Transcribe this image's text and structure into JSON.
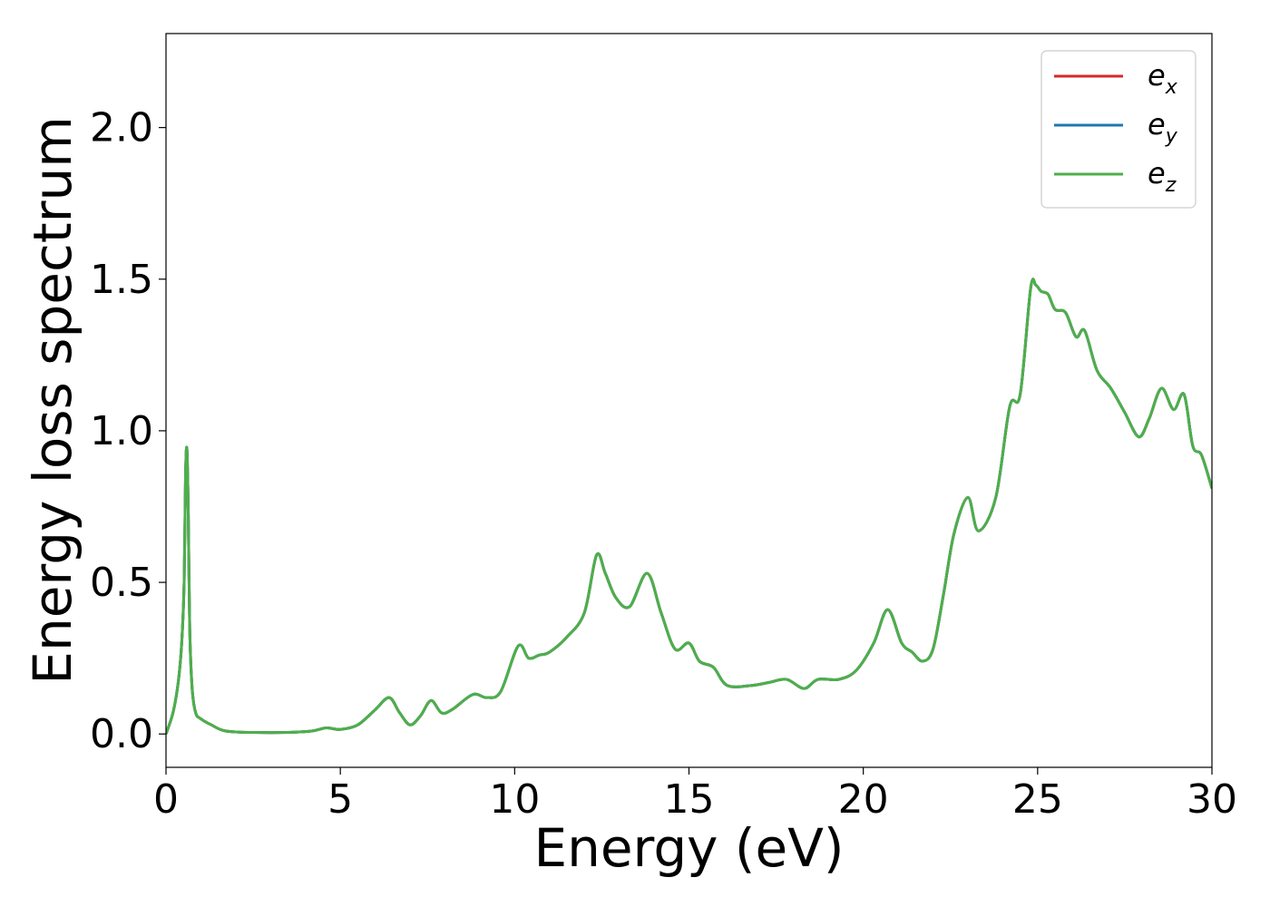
{
  "chart_data": {
    "type": "line",
    "title": "",
    "xlabel": "Energy (eV)",
    "ylabel": "Energy loss spectrum",
    "xlim": [
      0,
      30
    ],
    "ylim": [
      -0.11,
      2.31
    ],
    "xticks": [
      0,
      5,
      10,
      15,
      20,
      25,
      30
    ],
    "xtick_labels": [
      "0",
      "5",
      "10",
      "15",
      "20",
      "25",
      "30"
    ],
    "yticks": [
      0.0,
      0.5,
      1.0,
      1.5,
      2.0
    ],
    "ytick_labels": [
      "0.0",
      "0.5",
      "1.0",
      "1.5",
      "2.0"
    ],
    "grid": false,
    "legend_position": "top-right",
    "series": [
      {
        "name": "e",
        "subscript": "x",
        "color": "#d62728"
      },
      {
        "name": "e",
        "subscript": "y",
        "color": "#1f77b4"
      },
      {
        "name": "e",
        "subscript": "z",
        "color": "#4daf4a"
      }
    ],
    "x": [
      0,
      0.2,
      0.35,
      0.45,
      0.52,
      0.56,
      0.6,
      0.64,
      0.68,
      0.75,
      0.85,
      1.0,
      1.3,
      1.7,
      2.5,
      3.5,
      4.2,
      4.6,
      5.0,
      5.5,
      6.0,
      6.4,
      6.7,
      7.0,
      7.3,
      7.6,
      7.9,
      8.2,
      8.8,
      9.2,
      9.6,
      10.1,
      10.4,
      10.7,
      11.0,
      11.5,
      12.0,
      12.35,
      12.6,
      12.9,
      13.3,
      13.8,
      14.2,
      14.6,
      15.0,
      15.3,
      15.7,
      16.1,
      16.8,
      17.3,
      17.8,
      18.3,
      18.7,
      19.3,
      19.8,
      20.3,
      20.7,
      21.1,
      21.4,
      21.7,
      22.0,
      22.3,
      22.6,
      23.0,
      23.3,
      23.8,
      24.2,
      24.5,
      24.8,
      24.95,
      25.1,
      25.3,
      25.5,
      25.8,
      26.1,
      26.35,
      26.7,
      27.1,
      27.5,
      27.9,
      28.2,
      28.55,
      28.9,
      29.2,
      29.45,
      29.7,
      30.0
    ],
    "y": [
      0.0,
      0.07,
      0.17,
      0.3,
      0.5,
      0.85,
      0.94,
      0.72,
      0.35,
      0.15,
      0.07,
      0.05,
      0.03,
      0.01,
      0.005,
      0.005,
      0.01,
      0.02,
      0.015,
      0.03,
      0.08,
      0.12,
      0.07,
      0.03,
      0.06,
      0.11,
      0.07,
      0.08,
      0.13,
      0.12,
      0.14,
      0.29,
      0.25,
      0.26,
      0.27,
      0.32,
      0.4,
      0.59,
      0.53,
      0.45,
      0.42,
      0.53,
      0.4,
      0.28,
      0.3,
      0.24,
      0.22,
      0.16,
      0.16,
      0.17,
      0.18,
      0.15,
      0.18,
      0.18,
      0.21,
      0.3,
      0.41,
      0.3,
      0.27,
      0.24,
      0.28,
      0.46,
      0.66,
      0.78,
      0.67,
      0.78,
      1.08,
      1.12,
      1.47,
      1.48,
      1.46,
      1.45,
      1.4,
      1.39,
      1.31,
      1.33,
      1.2,
      1.14,
      1.06,
      0.98,
      1.04,
      1.14,
      1.07,
      1.12,
      0.95,
      0.92,
      0.81
    ]
  }
}
